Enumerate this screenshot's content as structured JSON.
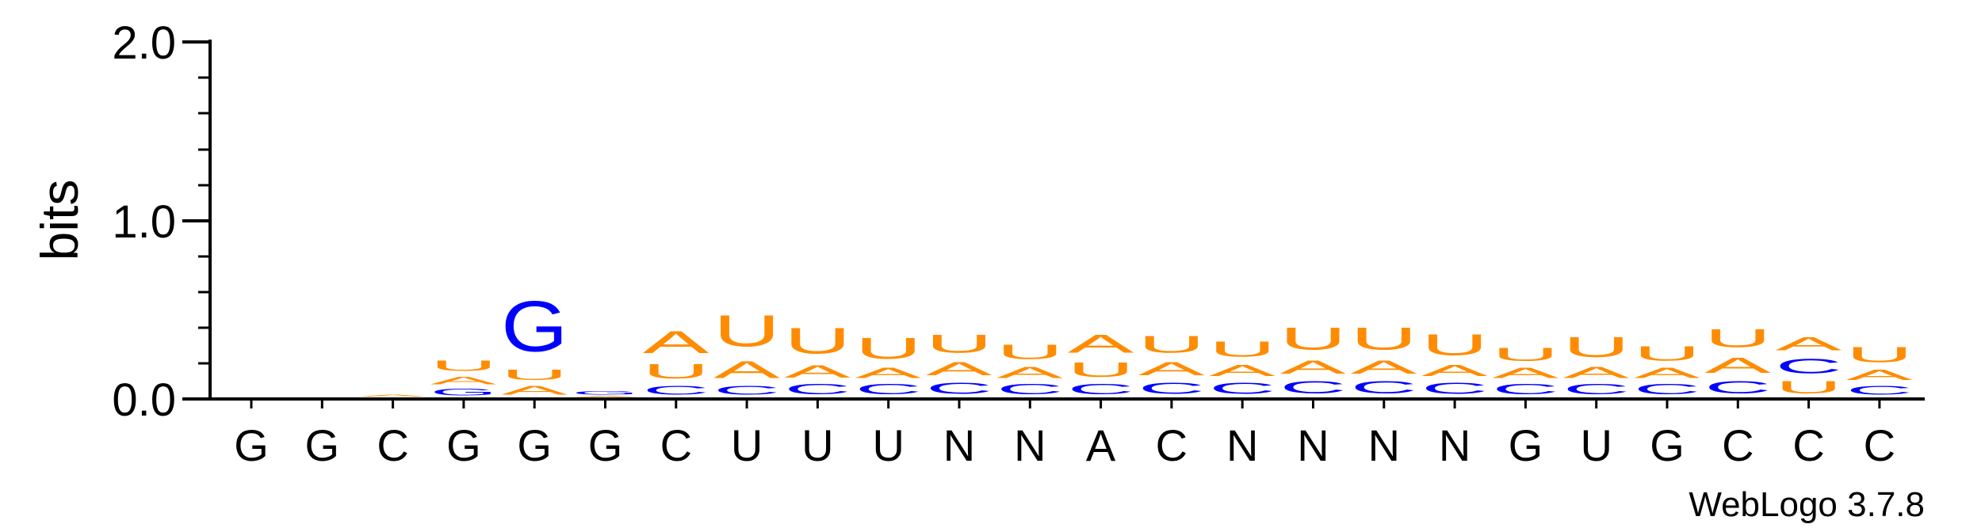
{
  "chart_data": {
    "type": "sequence-logo",
    "ylabel": "bits",
    "ylim": [
      0,
      2
    ],
    "yticks": [
      "0.0",
      "1.0",
      "2.0"
    ],
    "watermark": "WebLogo 3.7.8",
    "colors": {
      "A": "#FF8C00",
      "U": "#FF8C00",
      "C": "#0000FF",
      "G": "#0000FF"
    },
    "positions": [
      {
        "label": "G",
        "stack": []
      },
      {
        "label": "G",
        "stack": []
      },
      {
        "label": "C",
        "stack": [
          [
            "A",
            0.02
          ]
        ]
      },
      {
        "label": "G",
        "stack": [
          [
            "G",
            0.06
          ],
          [
            "A",
            0.07
          ],
          [
            "U",
            0.09
          ]
        ]
      },
      {
        "label": "G",
        "stack": [
          [
            "A",
            0.08
          ],
          [
            "U",
            0.09
          ],
          [
            "G",
            0.45
          ]
        ]
      },
      {
        "label": "G",
        "stack": [
          [
            "A",
            0.01
          ],
          [
            "G",
            0.03
          ]
        ]
      },
      {
        "label": "C",
        "stack": [
          [
            "C",
            0.08
          ],
          [
            "U",
            0.13
          ],
          [
            "A",
            0.2
          ]
        ]
      },
      {
        "label": "U",
        "stack": [
          [
            "C",
            0.08
          ],
          [
            "A",
            0.15
          ],
          [
            "U",
            0.28
          ]
        ]
      },
      {
        "label": "U",
        "stack": [
          [
            "C",
            0.09
          ],
          [
            "A",
            0.11
          ],
          [
            "U",
            0.23
          ]
        ]
      },
      {
        "label": "U",
        "stack": [
          [
            "C",
            0.09
          ],
          [
            "A",
            0.09
          ],
          [
            "U",
            0.19
          ]
        ]
      },
      {
        "label": "N",
        "stack": [
          [
            "C",
            0.1
          ],
          [
            "A",
            0.12
          ],
          [
            "U",
            0.16
          ]
        ]
      },
      {
        "label": "N",
        "stack": [
          [
            "C",
            0.09
          ],
          [
            "A",
            0.1
          ],
          [
            "U",
            0.13
          ]
        ]
      },
      {
        "label": "A",
        "stack": [
          [
            "C",
            0.09
          ],
          [
            "U",
            0.13
          ],
          [
            "A",
            0.16
          ]
        ]
      },
      {
        "label": "C",
        "stack": [
          [
            "C",
            0.1
          ],
          [
            "A",
            0.12
          ],
          [
            "U",
            0.15
          ]
        ]
      },
      {
        "label": "N",
        "stack": [
          [
            "C",
            0.1
          ],
          [
            "A",
            0.1
          ],
          [
            "U",
            0.14
          ]
        ]
      },
      {
        "label": "N",
        "stack": [
          [
            "C",
            0.11
          ],
          [
            "A",
            0.12
          ],
          [
            "U",
            0.2
          ]
        ]
      },
      {
        "label": "N",
        "stack": [
          [
            "C",
            0.11
          ],
          [
            "A",
            0.12
          ],
          [
            "U",
            0.2
          ]
        ]
      },
      {
        "label": "N",
        "stack": [
          [
            "C",
            0.1
          ],
          [
            "A",
            0.1
          ],
          [
            "U",
            0.19
          ]
        ]
      },
      {
        "label": "G",
        "stack": [
          [
            "C",
            0.09
          ],
          [
            "A",
            0.09
          ],
          [
            "U",
            0.12
          ]
        ]
      },
      {
        "label": "U",
        "stack": [
          [
            "C",
            0.09
          ],
          [
            "A",
            0.1
          ],
          [
            "U",
            0.18
          ]
        ]
      },
      {
        "label": "G",
        "stack": [
          [
            "C",
            0.09
          ],
          [
            "A",
            0.09
          ],
          [
            "U",
            0.13
          ]
        ]
      },
      {
        "label": "C",
        "stack": [
          [
            "C",
            0.11
          ],
          [
            "A",
            0.14
          ],
          [
            "U",
            0.16
          ]
        ]
      },
      {
        "label": "C",
        "stack": [
          [
            "U",
            0.11
          ],
          [
            "C",
            0.13
          ],
          [
            "A",
            0.12
          ]
        ]
      },
      {
        "label": "C",
        "stack": [
          [
            "C",
            0.08
          ],
          [
            "A",
            0.09
          ],
          [
            "U",
            0.14
          ]
        ]
      }
    ]
  }
}
